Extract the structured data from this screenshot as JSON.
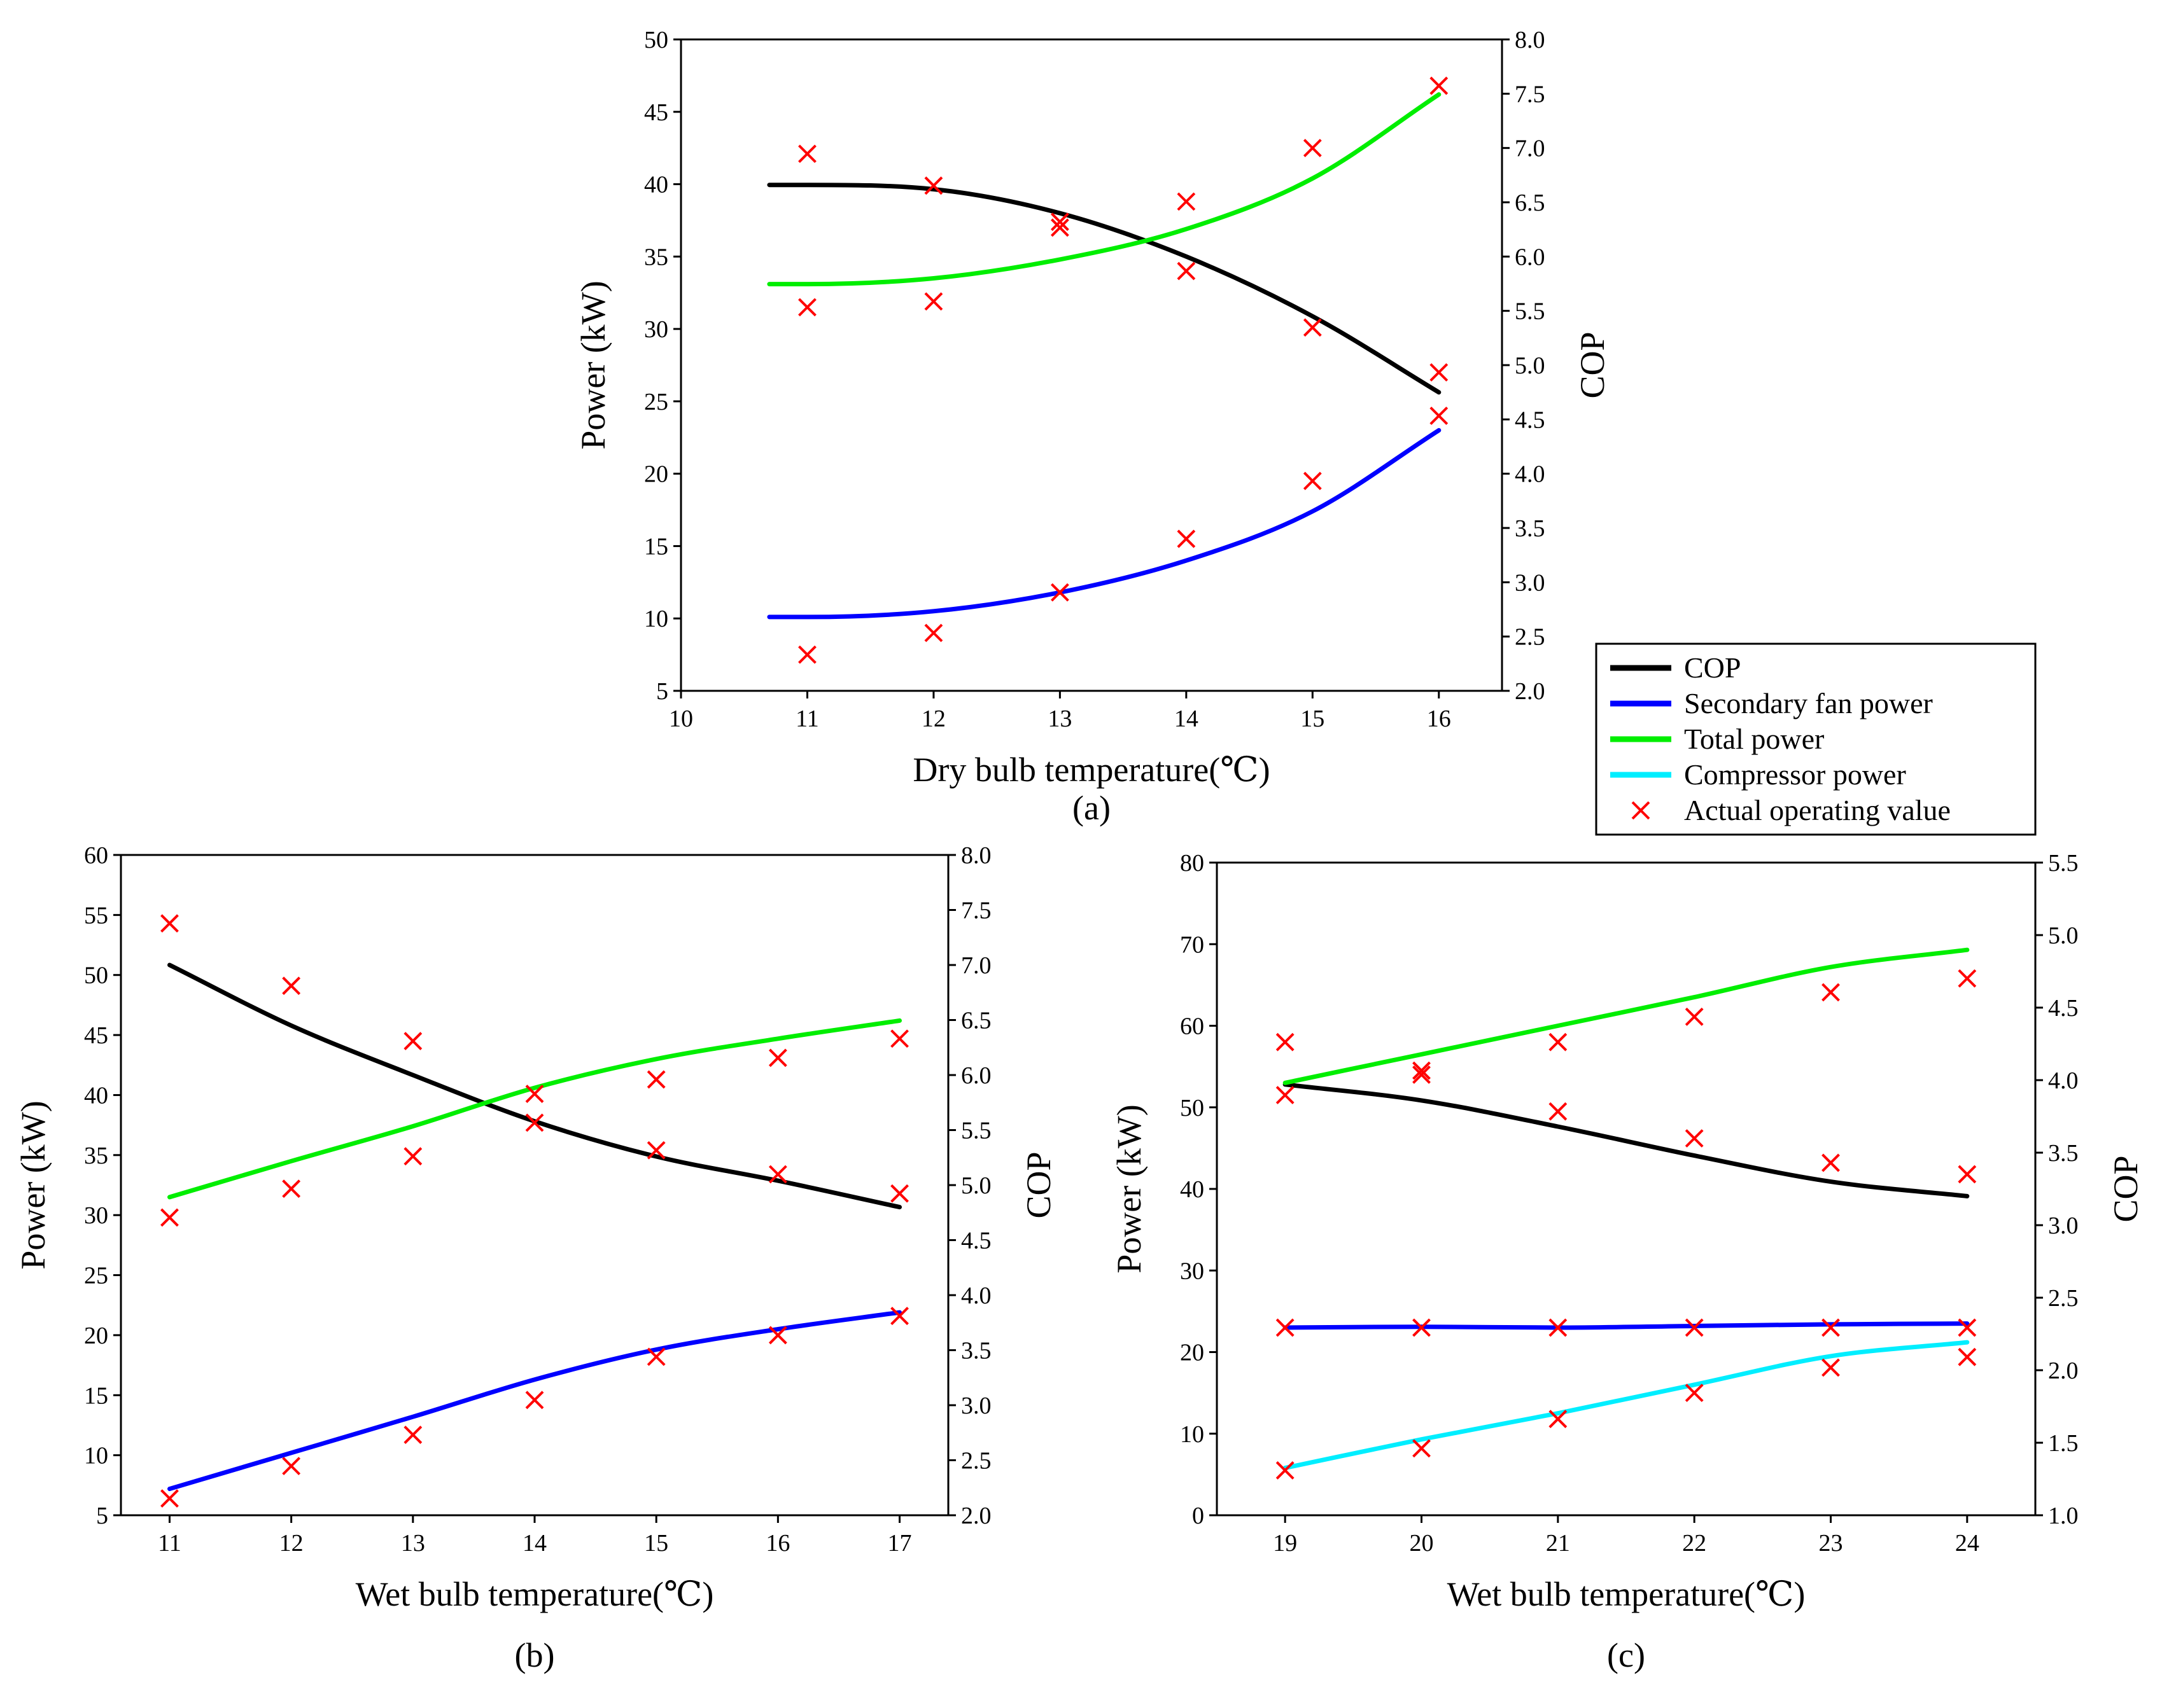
{
  "figure": {
    "legend": {
      "entries": [
        {
          "label": "COP",
          "kind": "line",
          "color": "#000000"
        },
        {
          "label": "Secondary fan power",
          "kind": "line",
          "color": "#0000ff"
        },
        {
          "label": "Total power",
          "kind": "line",
          "color": "#00ee00"
        },
        {
          "label": "Compressor power",
          "kind": "line",
          "color": "#00eeff"
        },
        {
          "label": "Actual operating value",
          "kind": "marker",
          "color": "#ff0000"
        }
      ]
    }
  },
  "chart_data": [
    {
      "panel": "(a)",
      "type": "line",
      "title": "",
      "xlabel": "Dry bulb temperature(℃)",
      "ylabel": "Power (kW)",
      "y2label": "COP",
      "xlim": [
        10,
        16.5
      ],
      "ylim": [
        5,
        50
      ],
      "y2lim": [
        2.0,
        8.0
      ],
      "xticks": [
        "10",
        "11",
        "12",
        "13",
        "14",
        "15",
        "16"
      ],
      "yticks": [
        "5",
        "10",
        "15",
        "20",
        "25",
        "30",
        "35",
        "40",
        "45",
        "50"
      ],
      "y2ticks": [
        "2.0",
        "2.5",
        "3.0",
        "3.5",
        "4.0",
        "4.5",
        "5.0",
        "5.5",
        "6.0",
        "6.5",
        "7.0",
        "7.5",
        "8.0"
      ],
      "grid": false,
      "series": [
        {
          "name": "COP",
          "axis": "right",
          "color": "#000000",
          "x": [
            10.7,
            11,
            12,
            13,
            14,
            15,
            16
          ],
          "y": [
            6.66,
            6.66,
            6.62,
            6.4,
            6.0,
            5.45,
            4.75
          ]
        },
        {
          "name": "Secondary fan power",
          "axis": "left",
          "color": "#0000ff",
          "x": [
            10.7,
            11,
            12,
            13,
            14,
            15,
            16
          ],
          "y": [
            10.1,
            10.1,
            10.5,
            11.8,
            14.0,
            17.4,
            23.0
          ]
        },
        {
          "name": "Total power",
          "axis": "left",
          "color": "#00ee00",
          "x": [
            10.7,
            11,
            12,
            13,
            14,
            15,
            16
          ],
          "y": [
            33.1,
            33.1,
            33.5,
            34.8,
            36.9,
            40.4,
            46.2
          ]
        }
      ],
      "markers": [
        {
          "axis": "left",
          "x": [
            11,
            12,
            13,
            14,
            15,
            16
          ],
          "y": [
            42.1,
            39.9,
            37.4,
            38.8,
            42.5,
            46.8
          ]
        },
        {
          "axis": "left",
          "x": [
            11,
            12,
            13,
            14,
            15,
            16
          ],
          "y": [
            31.5,
            31.9,
            37.0,
            34.0,
            30.1,
            27.0
          ]
        },
        {
          "axis": "left",
          "x": [
            11,
            12,
            13,
            14,
            15,
            16
          ],
          "y": [
            7.5,
            9.0,
            11.8,
            15.5,
            19.5,
            24.0
          ]
        }
      ]
    },
    {
      "panel": "(b)",
      "type": "line",
      "title": "",
      "xlabel": "Wet bulb temperature(℃)",
      "ylabel": "Power (kW)",
      "y2label": "COP",
      "xlim": [
        10.6,
        17.4
      ],
      "ylim": [
        5,
        60
      ],
      "y2lim": [
        2.0,
        8.0
      ],
      "xticks": [
        "11",
        "12",
        "13",
        "14",
        "15",
        "16",
        "17"
      ],
      "yticks": [
        "5",
        "10",
        "15",
        "20",
        "25",
        "30",
        "35",
        "40",
        "45",
        "50",
        "55",
        "60"
      ],
      "y2ticks": [
        "2.0",
        "2.5",
        "3.0",
        "3.5",
        "4.0",
        "4.5",
        "5.0",
        "5.5",
        "6.0",
        "6.5",
        "7.0",
        "7.5",
        "8.0"
      ],
      "grid": false,
      "series": [
        {
          "name": "COP",
          "axis": "right",
          "color": "#000000",
          "x": [
            11,
            12,
            13,
            14,
            15,
            16,
            17
          ],
          "y": [
            7.0,
            6.45,
            6.0,
            5.58,
            5.26,
            5.04,
            4.8
          ]
        },
        {
          "name": "Secondary fan power",
          "axis": "left",
          "color": "#0000ff",
          "x": [
            11,
            12,
            13,
            14,
            15,
            16,
            17
          ],
          "y": [
            7.2,
            10.2,
            13.2,
            16.3,
            18.8,
            20.5,
            21.9
          ]
        },
        {
          "name": "Total power",
          "axis": "left",
          "color": "#00ee00",
          "x": [
            11,
            12,
            13,
            14,
            15,
            16,
            17
          ],
          "y": [
            31.5,
            34.5,
            37.4,
            40.6,
            43.0,
            44.7,
            46.2
          ]
        }
      ],
      "markers": [
        {
          "axis": "left",
          "x": [
            11,
            12,
            13,
            14,
            15,
            16,
            17
          ],
          "y": [
            54.3,
            49.1,
            44.5,
            40.1,
            41.3,
            43.1,
            44.7
          ]
        },
        {
          "axis": "left",
          "x": [
            11,
            12,
            13,
            14,
            15,
            16,
            17
          ],
          "y": [
            29.8,
            32.2,
            34.9,
            37.7,
            35.4,
            33.4,
            31.8
          ]
        },
        {
          "axis": "left",
          "x": [
            11,
            12,
            13,
            14,
            15,
            16,
            17
          ],
          "y": [
            6.4,
            9.1,
            11.7,
            14.6,
            18.2,
            20.0,
            21.6
          ]
        }
      ]
    },
    {
      "panel": "(c)",
      "type": "line",
      "title": "",
      "xlabel": "Wet bulb temperature(℃)",
      "ylabel": "Power (kW)",
      "y2label": "COP",
      "xlim": [
        18.5,
        24.5
      ],
      "ylim": [
        0,
        80
      ],
      "y2lim": [
        1.0,
        5.5
      ],
      "xticks": [
        "19",
        "20",
        "21",
        "22",
        "23",
        "24"
      ],
      "yticks": [
        "0",
        "10",
        "20",
        "30",
        "40",
        "50",
        "60",
        "70",
        "80"
      ],
      "y2ticks": [
        "1.0",
        "1.5",
        "2.0",
        "2.5",
        "3.0",
        "3.5",
        "4.0",
        "4.5",
        "5.0",
        "5.5"
      ],
      "grid": false,
      "series": [
        {
          "name": "COP",
          "axis": "right",
          "color": "#000000",
          "x": [
            19,
            20,
            21,
            22,
            23,
            24
          ],
          "y": [
            3.97,
            3.86,
            3.68,
            3.48,
            3.3,
            3.2
          ]
        },
        {
          "name": "Secondary fan power",
          "axis": "left",
          "color": "#0000ff",
          "x": [
            19,
            20,
            21,
            22,
            23,
            24
          ],
          "y": [
            23.0,
            23.1,
            23.0,
            23.2,
            23.4,
            23.5
          ]
        },
        {
          "name": "Total power",
          "axis": "left",
          "color": "#00ee00",
          "x": [
            19,
            20,
            21,
            22,
            23,
            24
          ],
          "y": [
            53.0,
            56.5,
            60.0,
            63.5,
            67.2,
            69.3
          ]
        },
        {
          "name": "Compressor power",
          "axis": "left",
          "color": "#00eeff",
          "x": [
            19,
            20,
            21,
            22,
            23,
            24
          ],
          "y": [
            5.8,
            9.3,
            12.5,
            16.0,
            19.5,
            21.2
          ]
        }
      ],
      "markers": [
        {
          "axis": "left",
          "x": [
            19,
            20,
            20,
            21,
            22,
            23,
            24
          ],
          "y": [
            58.0,
            54.0,
            54.5,
            58.0,
            61.1,
            64.1,
            65.8
          ]
        },
        {
          "axis": "left",
          "x": [
            19,
            21,
            22,
            23,
            24
          ],
          "y": [
            51.5,
            49.5,
            46.2,
            43.2,
            41.8
          ]
        },
        {
          "axis": "left",
          "x": [
            19,
            20,
            21,
            22,
            23,
            24
          ],
          "y": [
            23.0,
            23.0,
            23.0,
            23.0,
            23.0,
            23.0
          ]
        },
        {
          "axis": "left",
          "x": [
            19,
            20,
            21,
            22,
            23,
            24
          ],
          "y": [
            5.5,
            8.2,
            11.8,
            15.0,
            18.1,
            19.4
          ]
        }
      ]
    }
  ]
}
